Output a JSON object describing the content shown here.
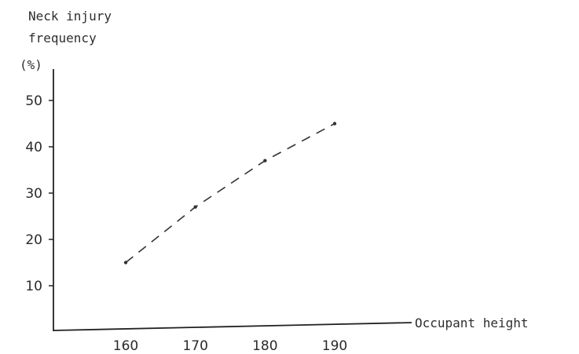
{
  "chart_data": {
    "type": "line",
    "ylabel_lines": [
      "Neck injury",
      "frequency"
    ],
    "yunit": "(%)",
    "xlabel": "Occupant height",
    "xlim": [
      150,
      196
    ],
    "ylim": [
      0,
      55
    ],
    "x_ticks": [
      160,
      170,
      180,
      190
    ],
    "y_ticks": [
      10,
      20,
      30,
      40,
      50
    ],
    "grid": false,
    "line_style": "dashed",
    "series": [
      {
        "x": [
          160,
          170,
          180,
          190
        ],
        "y": [
          15,
          27,
          37,
          45
        ]
      }
    ],
    "colors": {
      "axis": "#222222",
      "line": "#333333"
    }
  }
}
